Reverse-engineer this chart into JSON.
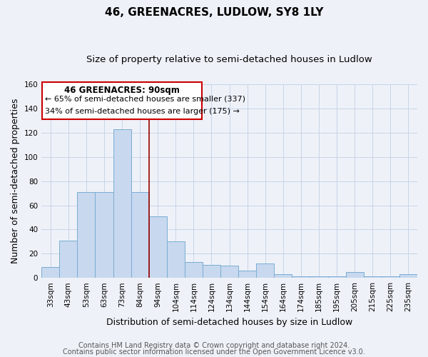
{
  "title": "46, GREENACRES, LUDLOW, SY8 1LY",
  "subtitle": "Size of property relative to semi-detached houses in Ludlow",
  "xlabel": "Distribution of semi-detached houses by size in Ludlow",
  "ylabel": "Number of semi-detached properties",
  "footnote1": "Contains HM Land Registry data © Crown copyright and database right 2024.",
  "footnote2": "Contains public sector information licensed under the Open Government Licence v3.0.",
  "bar_labels": [
    "33sqm",
    "43sqm",
    "53sqm",
    "63sqm",
    "73sqm",
    "84sqm",
    "94sqm",
    "104sqm",
    "114sqm",
    "124sqm",
    "134sqm",
    "144sqm",
    "154sqm",
    "164sqm",
    "174sqm",
    "185sqm",
    "195sqm",
    "205sqm",
    "215sqm",
    "225sqm",
    "235sqm"
  ],
  "bar_values": [
    9,
    31,
    71,
    71,
    123,
    71,
    51,
    30,
    13,
    11,
    10,
    6,
    12,
    3,
    1,
    1,
    1,
    5,
    1,
    1,
    3
  ],
  "bar_color": "#c8d8ee",
  "bar_edgecolor": "#7aadd4",
  "highlight_index": 5,
  "highlight_line_color": "#990000",
  "annotation_line1": "46 GREENACRES: 90sqm",
  "annotation_line2": "← 65% of semi-detached houses are smaller (337)",
  "annotation_line3": "34% of semi-detached houses are larger (175) →",
  "annotation_box_color": "#cc0000",
  "ylim": [
    0,
    160
  ],
  "yticks": [
    0,
    20,
    40,
    60,
    80,
    100,
    120,
    140,
    160
  ],
  "grid_color": "#c8d4e8",
  "background_color": "#eef2f8",
  "title_fontsize": 11,
  "subtitle_fontsize": 9.5,
  "axis_label_fontsize": 9,
  "tick_fontsize": 7.5,
  "annotation_fontsize": 8.5,
  "footnote_fontsize": 7
}
